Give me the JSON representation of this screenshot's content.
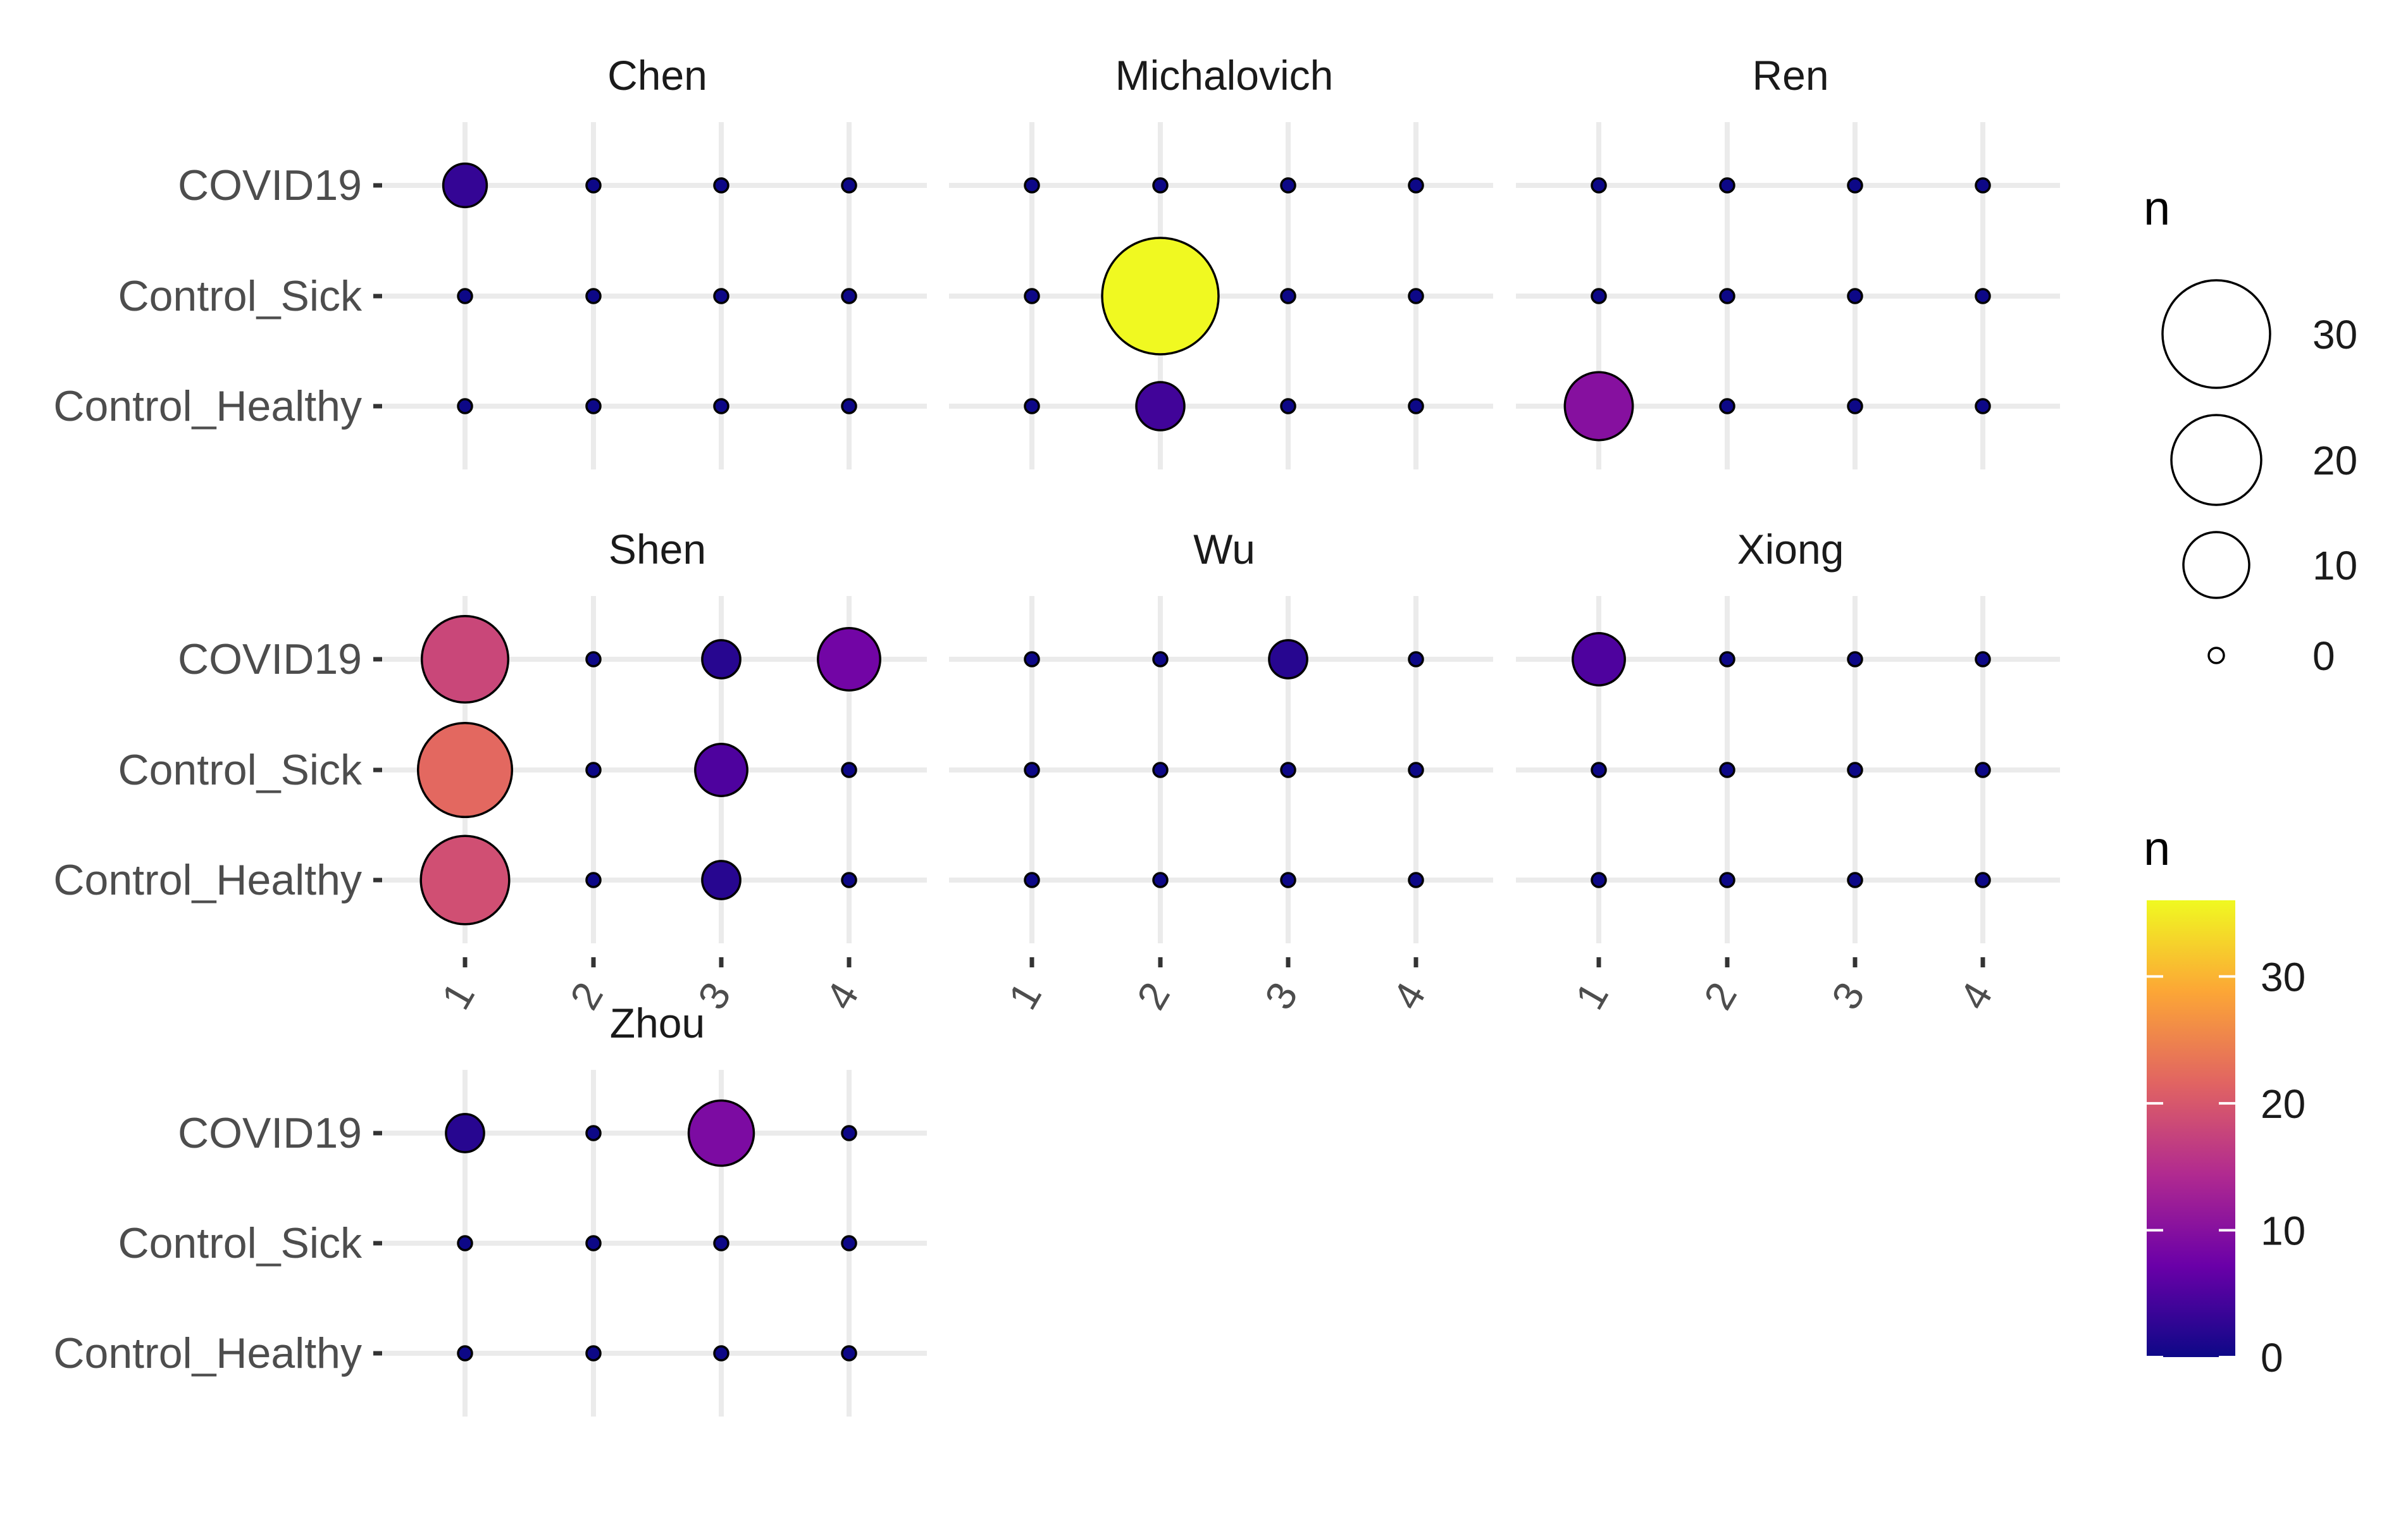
{
  "chart_data": {
    "type": "scatter",
    "description_kind": "faceted bubble/dot plot",
    "categories_x": [
      "1",
      "2",
      "3",
      "4"
    ],
    "categories_y": [
      "COVID19",
      "Control_Sick",
      "Control_Healthy"
    ],
    "facets": [
      {
        "name": "Chen",
        "points": [
          {
            "x": "1",
            "y": "COVID19",
            "n": 3
          },
          {
            "x": "2",
            "y": "COVID19",
            "n": 0
          },
          {
            "x": "3",
            "y": "COVID19",
            "n": 0
          },
          {
            "x": "4",
            "y": "COVID19",
            "n": 0
          },
          {
            "x": "1",
            "y": "Control_Sick",
            "n": 0
          },
          {
            "x": "2",
            "y": "Control_Sick",
            "n": 0
          },
          {
            "x": "3",
            "y": "Control_Sick",
            "n": 0
          },
          {
            "x": "4",
            "y": "Control_Sick",
            "n": 0
          },
          {
            "x": "1",
            "y": "Control_Healthy",
            "n": 0
          },
          {
            "x": "2",
            "y": "Control_Healthy",
            "n": 0
          },
          {
            "x": "3",
            "y": "Control_Healthy",
            "n": 0
          },
          {
            "x": "4",
            "y": "Control_Healthy",
            "n": 0
          }
        ]
      },
      {
        "name": "Michalovich",
        "points": [
          {
            "x": "1",
            "y": "COVID19",
            "n": 0
          },
          {
            "x": "2",
            "y": "COVID19",
            "n": 0
          },
          {
            "x": "3",
            "y": "COVID19",
            "n": 0
          },
          {
            "x": "4",
            "y": "COVID19",
            "n": 0
          },
          {
            "x": "1",
            "y": "Control_Sick",
            "n": 0
          },
          {
            "x": "2",
            "y": "Control_Sick",
            "n": 36
          },
          {
            "x": "3",
            "y": "Control_Sick",
            "n": 0
          },
          {
            "x": "4",
            "y": "Control_Sick",
            "n": 0
          },
          {
            "x": "1",
            "y": "Control_Healthy",
            "n": 0
          },
          {
            "x": "2",
            "y": "Control_Healthy",
            "n": 4
          },
          {
            "x": "3",
            "y": "Control_Healthy",
            "n": 0
          },
          {
            "x": "4",
            "y": "Control_Healthy",
            "n": 0
          }
        ]
      },
      {
        "name": "Ren",
        "points": [
          {
            "x": "1",
            "y": "COVID19",
            "n": 0
          },
          {
            "x": "2",
            "y": "COVID19",
            "n": 0
          },
          {
            "x": "3",
            "y": "COVID19",
            "n": 0
          },
          {
            "x": "4",
            "y": "COVID19",
            "n": 0
          },
          {
            "x": "1",
            "y": "Control_Sick",
            "n": 0
          },
          {
            "x": "2",
            "y": "Control_Sick",
            "n": 0
          },
          {
            "x": "3",
            "y": "Control_Sick",
            "n": 0
          },
          {
            "x": "4",
            "y": "Control_Sick",
            "n": 0
          },
          {
            "x": "1",
            "y": "Control_Healthy",
            "n": 10
          },
          {
            "x": "2",
            "y": "Control_Healthy",
            "n": 0
          },
          {
            "x": "3",
            "y": "Control_Healthy",
            "n": 0
          },
          {
            "x": "4",
            "y": "Control_Healthy",
            "n": 0
          }
        ]
      },
      {
        "name": "Shen",
        "points": [
          {
            "x": "1",
            "y": "COVID19",
            "n": 18
          },
          {
            "x": "2",
            "y": "COVID19",
            "n": 0
          },
          {
            "x": "3",
            "y": "COVID19",
            "n": 2
          },
          {
            "x": "4",
            "y": "COVID19",
            "n": 8
          },
          {
            "x": "1",
            "y": "Control_Sick",
            "n": 22
          },
          {
            "x": "2",
            "y": "Control_Sick",
            "n": 0
          },
          {
            "x": "3",
            "y": "Control_Sick",
            "n": 5
          },
          {
            "x": "4",
            "y": "Control_Sick",
            "n": 0
          },
          {
            "x": "1",
            "y": "Control_Healthy",
            "n": 19
          },
          {
            "x": "2",
            "y": "Control_Healthy",
            "n": 0
          },
          {
            "x": "3",
            "y": "Control_Healthy",
            "n": 2
          },
          {
            "x": "4",
            "y": "Control_Healthy",
            "n": 0
          }
        ]
      },
      {
        "name": "Wu",
        "points": [
          {
            "x": "1",
            "y": "COVID19",
            "n": 0
          },
          {
            "x": "2",
            "y": "COVID19",
            "n": 0
          },
          {
            "x": "3",
            "y": "COVID19",
            "n": 2
          },
          {
            "x": "4",
            "y": "COVID19",
            "n": 0
          },
          {
            "x": "1",
            "y": "Control_Sick",
            "n": 0
          },
          {
            "x": "2",
            "y": "Control_Sick",
            "n": 0
          },
          {
            "x": "3",
            "y": "Control_Sick",
            "n": 0
          },
          {
            "x": "4",
            "y": "Control_Sick",
            "n": 0
          },
          {
            "x": "1",
            "y": "Control_Healthy",
            "n": 0
          },
          {
            "x": "2",
            "y": "Control_Healthy",
            "n": 0
          },
          {
            "x": "3",
            "y": "Control_Healthy",
            "n": 0
          },
          {
            "x": "4",
            "y": "Control_Healthy",
            "n": 0
          }
        ]
      },
      {
        "name": "Xiong",
        "points": [
          {
            "x": "1",
            "y": "COVID19",
            "n": 5
          },
          {
            "x": "2",
            "y": "COVID19",
            "n": 0
          },
          {
            "x": "3",
            "y": "COVID19",
            "n": 0
          },
          {
            "x": "4",
            "y": "COVID19",
            "n": 0
          },
          {
            "x": "1",
            "y": "Control_Sick",
            "n": 0
          },
          {
            "x": "2",
            "y": "Control_Sick",
            "n": 0
          },
          {
            "x": "3",
            "y": "Control_Sick",
            "n": 0
          },
          {
            "x": "4",
            "y": "Control_Sick",
            "n": 0
          },
          {
            "x": "1",
            "y": "Control_Healthy",
            "n": 0
          },
          {
            "x": "2",
            "y": "Control_Healthy",
            "n": 0
          },
          {
            "x": "3",
            "y": "Control_Healthy",
            "n": 0
          },
          {
            "x": "4",
            "y": "Control_Healthy",
            "n": 0
          }
        ]
      },
      {
        "name": "Zhou",
        "points": [
          {
            "x": "1",
            "y": "COVID19",
            "n": 2
          },
          {
            "x": "2",
            "y": "COVID19",
            "n": 0
          },
          {
            "x": "3",
            "y": "COVID19",
            "n": 9
          },
          {
            "x": "4",
            "y": "COVID19",
            "n": 0
          },
          {
            "x": "1",
            "y": "Control_Sick",
            "n": 0
          },
          {
            "x": "2",
            "y": "Control_Sick",
            "n": 0
          },
          {
            "x": "3",
            "y": "Control_Sick",
            "n": 0
          },
          {
            "x": "4",
            "y": "Control_Sick",
            "n": 0
          },
          {
            "x": "1",
            "y": "Control_Healthy",
            "n": 0
          },
          {
            "x": "2",
            "y": "Control_Healthy",
            "n": 0
          },
          {
            "x": "3",
            "y": "Control_Healthy",
            "n": 0
          },
          {
            "x": "4",
            "y": "Control_Healthy",
            "n": 0
          }
        ]
      }
    ],
    "size_legend": {
      "title": "n",
      "breaks": [
        30,
        20,
        10,
        0
      ]
    },
    "color_legend": {
      "title": "n",
      "breaks": [
        30,
        20,
        10,
        0
      ],
      "range": [
        0,
        36
      ],
      "palette": "plasma",
      "stops": [
        "#0d0887",
        "#6a00a8",
        "#b12a90",
        "#e16462",
        "#fca636",
        "#f0f921"
      ]
    },
    "grid": true,
    "legend_position": "right"
  }
}
